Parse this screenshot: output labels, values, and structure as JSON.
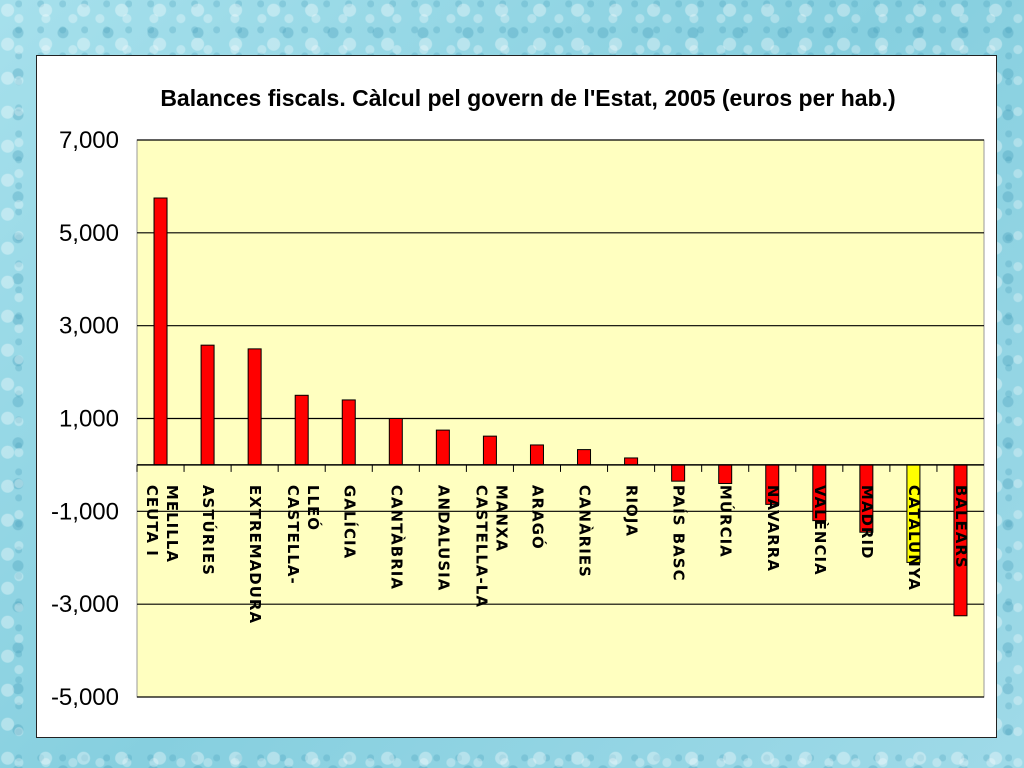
{
  "chart_data": {
    "type": "bar",
    "title": "Balances fiscals. Càlcul pel govern de l'Estat, 2005 (euros per hab.)",
    "xlabel": "",
    "ylabel": "",
    "ylim": [
      -5000,
      7000
    ],
    "yticks": [
      7000,
      5000,
      3000,
      1000,
      -1000,
      -3000,
      -5000
    ],
    "ytick_labels": [
      "7,000",
      "5,000",
      "3,000",
      "1,000",
      "-1,000",
      "-3,000",
      "-5,000"
    ],
    "grid": true,
    "legend": "none",
    "categories": [
      [
        "CEUTA I",
        "MELILLA"
      ],
      [
        "ASTÚRIES"
      ],
      [
        "EXTREMADURA"
      ],
      [
        "CASTELLA-",
        "LLEÓ"
      ],
      [
        "GALÍCIA"
      ],
      [
        "CANTÀBRIA"
      ],
      [
        "ANDALUSIA"
      ],
      [
        "CASTELLA-LA",
        "MANXA"
      ],
      [
        "ARAGÓ"
      ],
      [
        "CANÀRIES"
      ],
      [
        "RIOJA"
      ],
      [
        "PAÍS BASC"
      ],
      [
        "MÚRCIA"
      ],
      [
        "NAVARRA"
      ],
      [
        "VALÈNCIA"
      ],
      [
        "MADRID"
      ],
      [
        "CATALUNYA"
      ],
      [
        "BALEARS"
      ]
    ],
    "values": [
      5750,
      2580,
      2500,
      1500,
      1400,
      1000,
      750,
      620,
      430,
      330,
      150,
      -350,
      -400,
      -850,
      -1200,
      -1450,
      -2100,
      -3250
    ],
    "colors": {
      "bar": "#ff0000",
      "highlight": "#ffff00",
      "plot_background": "#ffffc0",
      "highlight_index": 16
    }
  }
}
